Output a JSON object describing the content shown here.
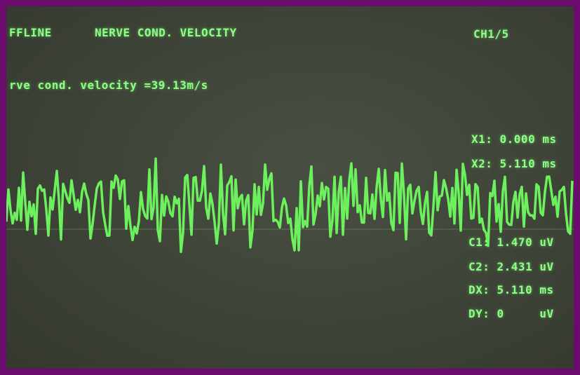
{
  "header": {
    "mode": "FFLINE",
    "title": "NERVE COND. VELOCITY",
    "channel": "CH1/5"
  },
  "result": "rve cond. velocity =39.13m/s",
  "readouts": [
    "X1: 0.000 ms",
    "X2: 5.110 ms",
    "C1: 1.470 uV",
    "C2: 2.431 uV",
    "DX: 5.110 ms",
    "DY: 0     uV"
  ]
}
